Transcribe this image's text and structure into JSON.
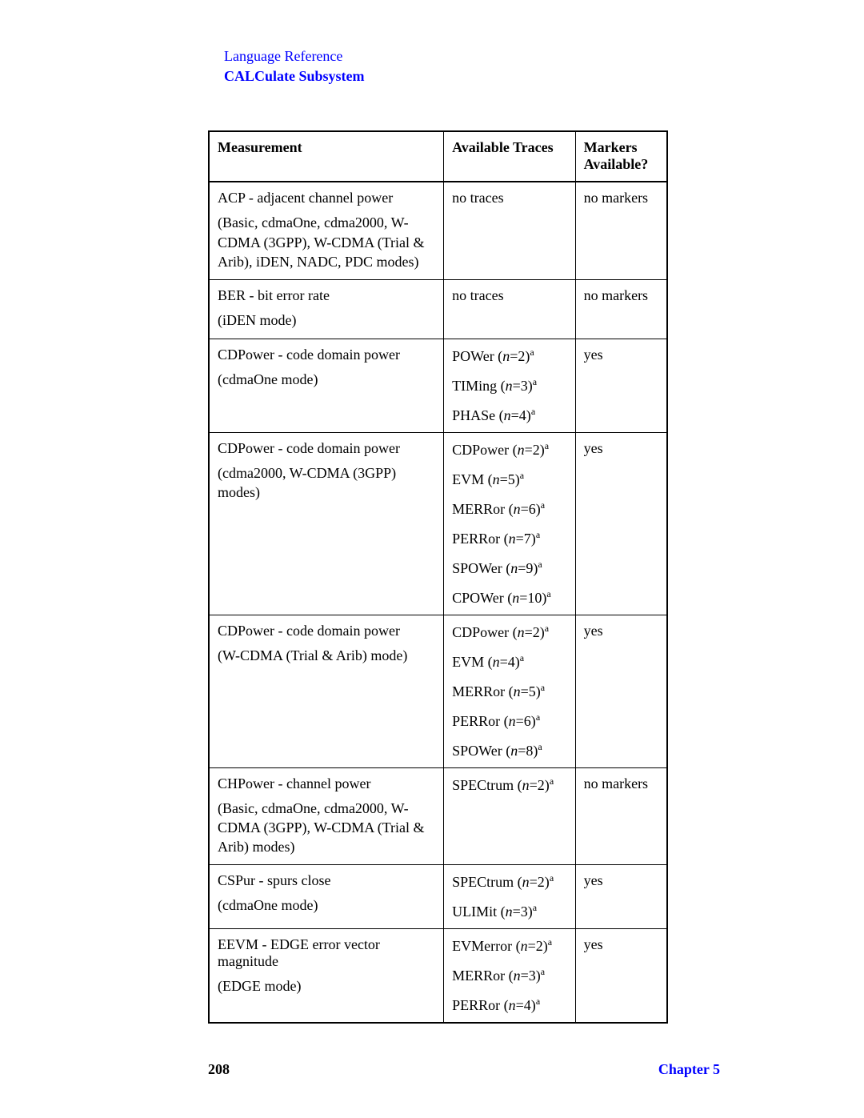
{
  "header": {
    "line1": "Language Reference",
    "line2": "CALCulate Subsystem"
  },
  "table": {
    "headers": {
      "measurement": "Measurement",
      "traces": "Available Traces",
      "markers": "Markers Available?"
    },
    "rows": [
      {
        "meas_title": "ACP - adjacent channel power",
        "meas_sub": "(Basic, cdmaOne, cdma2000, W-CDMA (3GPP), W-CDMA (Trial & Arib), iDEN, NADC, PDC modes)",
        "traces": [
          {
            "plain": "no traces"
          }
        ],
        "markers": "no markers"
      },
      {
        "meas_title": "BER - bit error rate",
        "meas_sub": "(iDEN mode)",
        "traces": [
          {
            "plain": "no traces"
          }
        ],
        "markers": "no markers"
      },
      {
        "meas_title": "CDPower - code domain power",
        "meas_sub": "(cdmaOne mode)",
        "traces": [
          {
            "name": "POWer",
            "n": "2"
          },
          {
            "name": "TIMing",
            "n": "3"
          },
          {
            "name": "PHASe",
            "n": "4"
          }
        ],
        "markers": "yes"
      },
      {
        "meas_title": "CDPower - code domain power",
        "meas_sub": "(cdma2000, W-CDMA (3GPP) modes)",
        "traces": [
          {
            "name": "CDPower",
            "n": "2"
          },
          {
            "name": "EVM",
            "n": "5"
          },
          {
            "name": "MERRor",
            "n": "6"
          },
          {
            "name": "PERRor",
            "n": "7"
          },
          {
            "name": "SPOWer",
            "n": "9"
          },
          {
            "name": "CPOWer",
            "n": "10"
          }
        ],
        "markers": "yes"
      },
      {
        "meas_title": "CDPower - code domain power",
        "meas_sub": "(W-CDMA (Trial & Arib) mode)",
        "traces": [
          {
            "name": "CDPower",
            "n": "2"
          },
          {
            "name": "EVM",
            "n": "4"
          },
          {
            "name": "MERRor",
            "n": "5"
          },
          {
            "name": "PERRor",
            "n": "6"
          },
          {
            "name": "SPOWer",
            "n": "8"
          }
        ],
        "markers": "yes"
      },
      {
        "meas_title": "CHPower - channel power",
        "meas_sub": "(Basic, cdmaOne, cdma2000, W-CDMA (3GPP), W-CDMA (Trial & Arib) modes)",
        "traces": [
          {
            "name": "SPECtrum",
            "n": "2"
          }
        ],
        "markers": "no markers"
      },
      {
        "meas_title": "CSPur - spurs close",
        "meas_sub": "(cdmaOne mode)",
        "traces": [
          {
            "name": "SPECtrum",
            "n": "2"
          },
          {
            "name": "ULIMit",
            "n": "3"
          }
        ],
        "markers": "yes"
      },
      {
        "meas_title": "EEVM - EDGE error vector magnitude",
        "meas_sub": "(EDGE mode)",
        "traces": [
          {
            "name": "EVMerror",
            "n": "2"
          },
          {
            "name": "MERRor",
            "n": "3"
          },
          {
            "name": "PERRor",
            "n": "4"
          }
        ],
        "markers": "yes"
      }
    ]
  },
  "footer": {
    "page": "208",
    "chapter": "Chapter 5"
  }
}
